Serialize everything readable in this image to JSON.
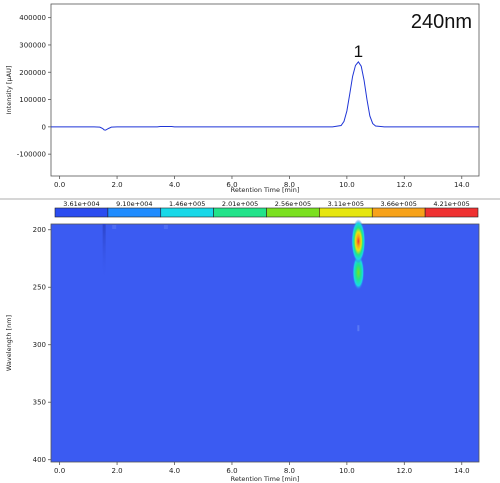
{
  "chart_data": [
    {
      "type": "line",
      "annotation": "240nm",
      "peak_labels": [
        {
          "label": "1",
          "x": 10.4
        }
      ],
      "xlabel": "Retention Time [min]",
      "ylabel": "Intensity [µAU]",
      "xlim": [
        -0.3,
        14.6
      ],
      "ylim": [
        -180000,
        450000
      ],
      "xticks": [
        "0.0",
        "2.0",
        "4.0",
        "6.0",
        "8.0",
        "10.0",
        "12.0",
        "14.0"
      ],
      "yticks": [
        "400000",
        "300000",
        "200000",
        "100000",
        "0",
        "-100000"
      ],
      "color": "#1f35d6",
      "series": [
        {
          "x": [
            -0.3,
            1.2,
            1.4,
            1.5,
            1.55,
            1.6,
            1.7,
            1.8,
            2.0,
            3.0,
            3.4,
            3.5,
            3.9,
            4.0,
            6.0,
            9.5,
            9.8,
            9.9,
            10.0,
            10.1,
            10.2,
            10.3,
            10.4,
            10.5,
            10.6,
            10.7,
            10.8,
            10.9,
            11.0,
            11.3,
            12.0,
            14.6
          ],
          "y": [
            0,
            0,
            -1000,
            -6000,
            -11000,
            -12000,
            -6000,
            -1000,
            0,
            0,
            0,
            1500,
            1500,
            0,
            0,
            0,
            5000,
            20000,
            58000,
            120000,
            185000,
            225000,
            238000,
            222000,
            170000,
            100000,
            40000,
            12000,
            3000,
            0,
            0,
            0
          ]
        }
      ]
    },
    {
      "type": "heatmap",
      "xlabel": "Retention Time [min]",
      "ylabel": "Wavelength [nm]",
      "xlim": [
        -0.3,
        14.6
      ],
      "ylim": [
        195,
        402
      ],
      "xticks": [
        "0.0",
        "2.0",
        "4.0",
        "6.0",
        "8.0",
        "10.0",
        "12.0",
        "14.0"
      ],
      "yticks": [
        "200",
        "250",
        "300",
        "350",
        "400"
      ],
      "colorbar": {
        "labels": [
          "3.61e+004",
          "9.10e+004",
          "1.46e+005",
          "2.01e+005",
          "2.56e+005",
          "3.11e+005",
          "3.66e+005",
          "4.21e+005"
        ],
        "colors": [
          "#2b4cf0",
          "#1f8cff",
          "#18d8e8",
          "#22e38a",
          "#7be020",
          "#e6e60f",
          "#f7a21a",
          "#ef3131"
        ]
      },
      "background_color": "#3b5bf2",
      "features": [
        {
          "x": 10.4,
          "wl_from": 195,
          "wl_to": 255,
          "max_value": 421000.0
        },
        {
          "x": 1.55,
          "wl_from": 195,
          "wl_to": 245,
          "max_value": 91000.0
        }
      ]
    }
  ]
}
